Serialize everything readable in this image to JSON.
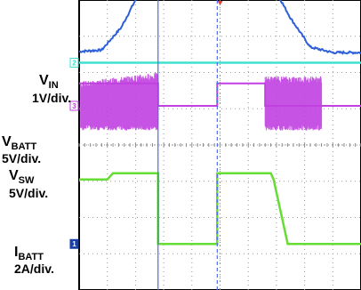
{
  "chart_data": {
    "type": "line",
    "title": "",
    "grid": true,
    "x_divisions": 10,
    "y_divisions": 8,
    "channel_labels": [
      {
        "name": "V",
        "sub": "IN",
        "scale": "1V/div."
      },
      {
        "name": "V",
        "sub": "BATT",
        "scale": "5V/div."
      },
      {
        "name": "V",
        "sub": "SW",
        "scale": "5V/div."
      },
      {
        "name": "I",
        "sub": "BATT",
        "scale": "2A/div."
      }
    ],
    "channel_markers": [
      "2",
      "3",
      "1"
    ],
    "series": [
      {
        "color": "#2d5fd8",
        "x": [
          0,
          0.8,
          1.5,
          2.2,
          3.0,
          3.8,
          4.5,
          5.2,
          6.0,
          6.8,
          7.5,
          8.2,
          9.0,
          10
        ],
        "y": [
          2.58,
          2.62,
          3.25,
          4.3,
          5.0,
          5.38,
          5.5,
          5.45,
          5.13,
          4.5,
          3.5,
          2.7,
          2.55,
          2.55
        ]
      },
      {
        "color": "#40e0d0",
        "x": [
          0,
          10
        ],
        "y": [
          2.27,
          2.27
        ]
      },
      {
        "color": "#c040e0",
        "x": [
          0,
          2.8,
          2.8,
          4.9,
          4.9,
          6.6,
          6.6,
          10
        ],
        "y": [
          1.7,
          1.7,
          1.08,
          1.08,
          1.7,
          1.7,
          1.08,
          1.08
        ]
      },
      {
        "color": "#66dd33",
        "x": [
          0,
          1.0,
          1.2,
          2.8,
          2.8,
          4.9,
          4.9,
          6.5,
          6.8,
          6.9,
          7.4,
          10
        ],
        "y": [
          -0.95,
          -0.95,
          -0.78,
          -0.78,
          -2.73,
          -2.73,
          -0.78,
          -0.78,
          -0.78,
          -0.95,
          -2.73,
          -2.73
        ]
      }
    ],
    "cursors": [
      {
        "x": 2.8,
        "style": "solid",
        "color": "#4a6ee8"
      },
      {
        "x": 4.9,
        "style": "dashed",
        "color": "#4a6ee8"
      }
    ]
  }
}
